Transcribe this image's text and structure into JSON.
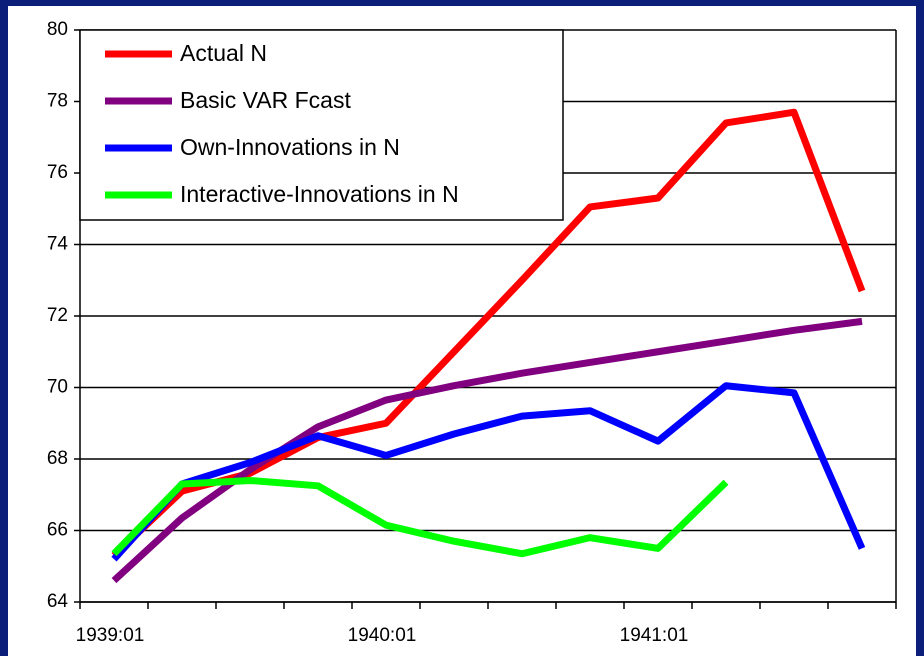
{
  "chart_data": {
    "type": "line",
    "categories": [
      "1939:01",
      null,
      null,
      null,
      "1940:01",
      null,
      null,
      null,
      "1941:01",
      null,
      null,
      null
    ],
    "series": [
      {
        "name": "Actual N",
        "color": "#ff0000",
        "values": [
          65.3,
          67.1,
          67.6,
          68.6,
          69.0,
          71.0,
          73.0,
          75.05,
          75.3,
          77.4,
          77.7,
          72.7
        ]
      },
      {
        "name": "Basic VAR Fcast",
        "color": "#800080",
        "values": [
          64.6,
          66.35,
          67.7,
          68.9,
          69.65,
          70.05,
          70.4,
          70.7,
          71.0,
          71.3,
          71.6,
          71.85
        ]
      },
      {
        "name": "Own-Innovations in N",
        "color": "#0000ff",
        "values": [
          65.2,
          67.3,
          67.9,
          68.65,
          68.1,
          68.7,
          69.2,
          69.35,
          68.5,
          70.05,
          69.85,
          65.5
        ]
      },
      {
        "name": "Interactive-Innovations in N",
        "color": "#00ff00",
        "values": [
          65.35,
          67.3,
          67.4,
          67.25,
          66.15,
          65.7,
          65.35,
          65.8,
          65.5,
          67.35,
          null,
          null
        ]
      }
    ],
    "ylim": [
      64,
      80
    ],
    "yticks": [
      64,
      66,
      68,
      70,
      72,
      74,
      76,
      78,
      80
    ],
    "grid": true
  }
}
